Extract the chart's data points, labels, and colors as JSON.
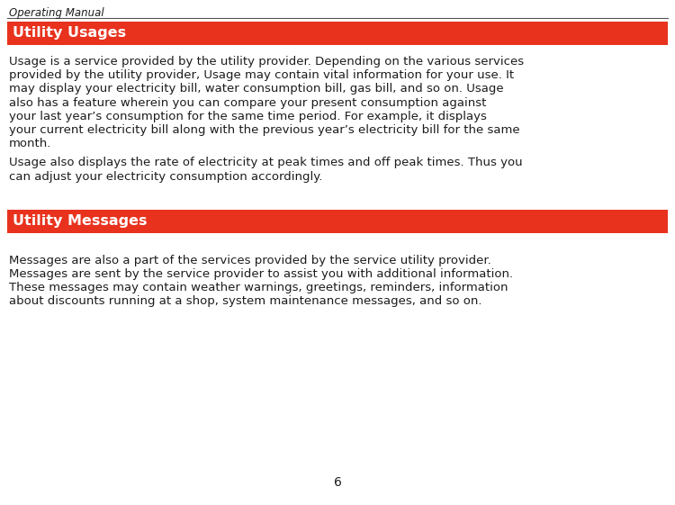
{
  "bg_color": "#ffffff",
  "header_color": "#1a1a1a",
  "header_text": "Operating Manual",
  "red_color": "#e8321e",
  "white_color": "#ffffff",
  "dark_text_color": "#1c1c1c",
  "section1_title": "Utility Usages",
  "section2_title": "Utility Messages",
  "para1_lines": [
    "Usage is a service provided by the utility provider. Depending on the various services",
    "provided by the utility provider, Usage may contain vital information for your use. It",
    "may display your electricity bill, water consumption bill, gas bill, and so on. Usage",
    "also has a feature wherein you can compare your present consumption against",
    "your last year’s consumption for the same time period. For example, it displays",
    "your current electricity bill along with the previous year’s electricity bill for the same",
    "month."
  ],
  "para2_lines": [
    "Usage also displays the rate of electricity at peak times and off peak times. Thus you",
    "can adjust your electricity consumption accordingly."
  ],
  "para3_lines": [
    "Messages are also a part of the services provided by the service utility provider.",
    "Messages are sent by the service provider to assist you with additional information.",
    "These messages may contain weather warnings, greetings, reminders, information",
    "about discounts running at a shop, system maintenance messages, and so on."
  ],
  "page_number": "6",
  "header_fontsize": 8.5,
  "section_title_fontsize": 11.5,
  "body_fontsize": 9.5,
  "page_num_fontsize": 10
}
